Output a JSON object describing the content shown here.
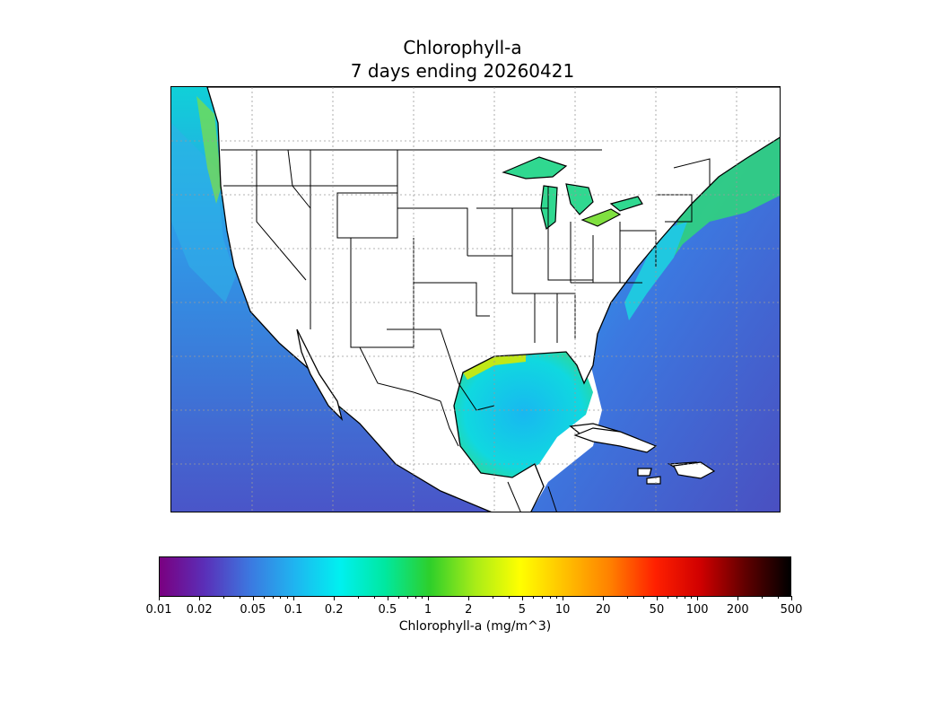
{
  "map": {
    "title_line1": "Chlorophyll-a",
    "title_line2": "7 days ending 20260421",
    "region": "continental United States, Gulf of Mexico, Caribbean",
    "layers": [
      "ocean-chlorophyll-raster",
      "coastlines",
      "state-borders",
      "country-borders",
      "lat-lon-graticule"
    ]
  },
  "colorbar": {
    "label": "Chlorophyll-a (mg/m^3)",
    "scale": "log",
    "range": [
      0.01,
      500
    ],
    "tick_labels": [
      "0.01",
      "0.02",
      "0.05",
      "0.1",
      "0.2",
      "0.5",
      "1",
      "2",
      "5",
      "10",
      "20",
      "50",
      "100",
      "200",
      "500"
    ],
    "tick_values": [
      0.01,
      0.02,
      0.05,
      0.1,
      0.2,
      0.5,
      1,
      2,
      5,
      10,
      20,
      50,
      100,
      200,
      500
    ],
    "colors": [
      "#7a0080",
      "#5a2fb8",
      "#3c78e0",
      "#1fb5f0",
      "#00f0f0",
      "#00e8a0",
      "#2ecf2a",
      "#a8ec18",
      "#ffff00",
      "#ffc000",
      "#ff8000",
      "#ff2000",
      "#d00000",
      "#600000",
      "#000000"
    ]
  },
  "ocean_colors": {
    "open_ocean": "#4a5ac8",
    "offshore": "#2f8ae6",
    "shelf": "#18c8e8",
    "coastal": "#30d890",
    "nearshore_high": "#c0e818"
  }
}
